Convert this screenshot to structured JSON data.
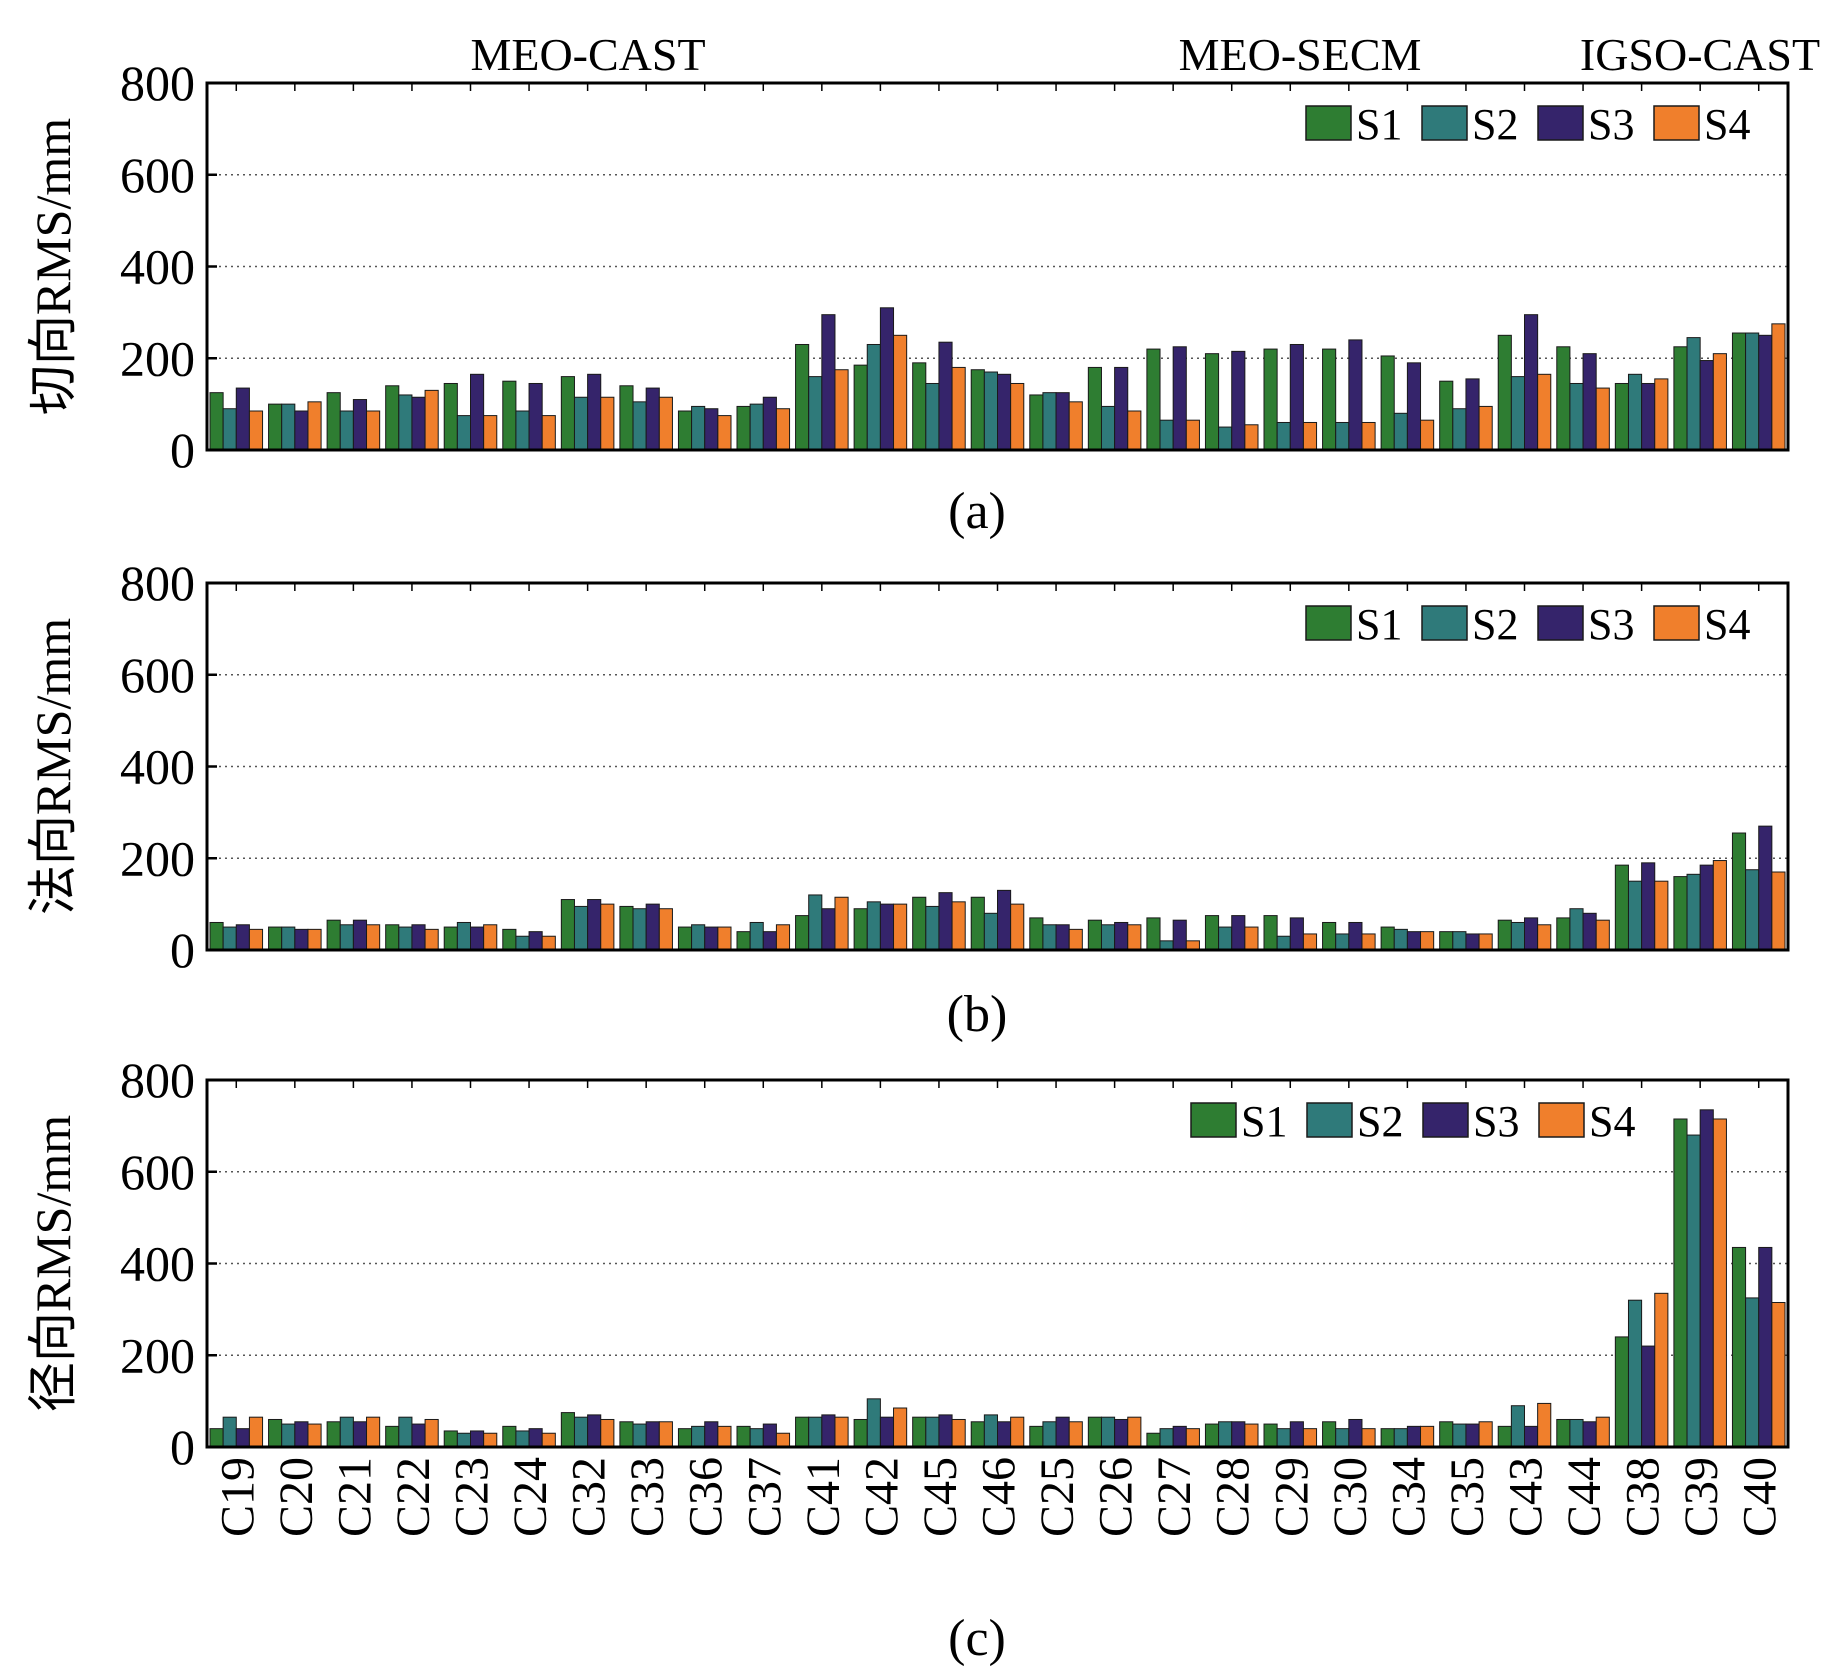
{
  "colors": {
    "S1": "#2e7d32",
    "S2": "#2f7a7a",
    "S3": "#35246b",
    "S4": "#f07f2c"
  },
  "group_labels": [
    "MEO-CAST",
    "MEO-SECM",
    "IGSO-CAST"
  ],
  "chart_data": [
    {
      "type": "bar",
      "panel_label": "(a)",
      "ylabel": "切向RMS/mm",
      "ylim": [
        0,
        800
      ],
      "yticks": [
        0,
        200,
        400,
        600,
        800
      ],
      "grid": "horizontal dotted",
      "legend_position": "top-right",
      "categories": [
        "C19",
        "C20",
        "C21",
        "C22",
        "C23",
        "C24",
        "C32",
        "C33",
        "C36",
        "C37",
        "C41",
        "C42",
        "C45",
        "C46",
        "C25",
        "C26",
        "C27",
        "C28",
        "C29",
        "C30",
        "C34",
        "C35",
        "C43",
        "C44",
        "C38",
        "C39",
        "C40"
      ],
      "series": [
        {
          "name": "S1",
          "values": [
            125,
            100,
            125,
            140,
            145,
            150,
            160,
            140,
            85,
            95,
            230,
            185,
            190,
            175,
            120,
            180,
            220,
            210,
            220,
            220,
            205,
            150,
            250,
            225,
            145,
            225,
            255
          ]
        },
        {
          "name": "S2",
          "values": [
            90,
            100,
            85,
            120,
            75,
            85,
            115,
            105,
            95,
            100,
            160,
            230,
            145,
            170,
            125,
            95,
            65,
            50,
            60,
            60,
            80,
            90,
            160,
            145,
            165,
            245,
            255
          ]
        },
        {
          "name": "S3",
          "values": [
            135,
            85,
            110,
            115,
            165,
            145,
            165,
            135,
            90,
            115,
            295,
            310,
            235,
            165,
            125,
            180,
            225,
            215,
            230,
            240,
            190,
            155,
            295,
            210,
            145,
            195,
            250
          ]
        },
        {
          "name": "S4",
          "values": [
            85,
            105,
            85,
            130,
            75,
            75,
            115,
            115,
            75,
            90,
            175,
            250,
            180,
            145,
            105,
            85,
            65,
            55,
            60,
            60,
            65,
            95,
            165,
            135,
            155,
            210,
            275
          ]
        }
      ]
    },
    {
      "type": "bar",
      "panel_label": "(b)",
      "ylabel": "法向RMS/mm",
      "ylim": [
        0,
        800
      ],
      "yticks": [
        0,
        200,
        400,
        600,
        800
      ],
      "grid": "horizontal dotted",
      "legend_position": "top-right",
      "categories": [
        "C19",
        "C20",
        "C21",
        "C22",
        "C23",
        "C24",
        "C32",
        "C33",
        "C36",
        "C37",
        "C41",
        "C42",
        "C45",
        "C46",
        "C25",
        "C26",
        "C27",
        "C28",
        "C29",
        "C30",
        "C34",
        "C35",
        "C43",
        "C44",
        "C38",
        "C39",
        "C40"
      ],
      "series": [
        {
          "name": "S1",
          "values": [
            60,
            50,
            65,
            55,
            50,
            45,
            110,
            95,
            50,
            40,
            75,
            90,
            115,
            115,
            70,
            65,
            70,
            75,
            75,
            60,
            50,
            40,
            65,
            70,
            185,
            160,
            255
          ]
        },
        {
          "name": "S2",
          "values": [
            50,
            50,
            55,
            50,
            60,
            30,
            95,
            90,
            55,
            60,
            120,
            105,
            95,
            80,
            55,
            55,
            20,
            50,
            30,
            35,
            45,
            40,
            60,
            90,
            150,
            165,
            175
          ]
        },
        {
          "name": "S3",
          "values": [
            55,
            45,
            65,
            55,
            50,
            40,
            110,
            100,
            50,
            40,
            90,
            100,
            125,
            130,
            55,
            60,
            65,
            75,
            70,
            60,
            40,
            35,
            70,
            80,
            190,
            185,
            270
          ]
        },
        {
          "name": "S4",
          "values": [
            45,
            45,
            55,
            45,
            55,
            30,
            100,
            90,
            50,
            55,
            115,
            100,
            105,
            100,
            45,
            55,
            20,
            50,
            35,
            35,
            40,
            35,
            55,
            65,
            150,
            195,
            170
          ]
        }
      ]
    },
    {
      "type": "bar",
      "panel_label": "(c)",
      "ylabel": "径向RMS/mm",
      "ylim": [
        0,
        800
      ],
      "yticks": [
        0,
        200,
        400,
        600,
        800
      ],
      "grid": "horizontal dotted",
      "legend_position": "top-right",
      "categories": [
        "C19",
        "C20",
        "C21",
        "C22",
        "C23",
        "C24",
        "C32",
        "C33",
        "C36",
        "C37",
        "C41",
        "C42",
        "C45",
        "C46",
        "C25",
        "C26",
        "C27",
        "C28",
        "C29",
        "C30",
        "C34",
        "C35",
        "C43",
        "C44",
        "C38",
        "C39",
        "C40"
      ],
      "series": [
        {
          "name": "S1",
          "values": [
            40,
            60,
            55,
            45,
            35,
            45,
            75,
            55,
            40,
            45,
            65,
            60,
            65,
            55,
            45,
            65,
            30,
            50,
            50,
            55,
            40,
            55,
            45,
            60,
            240,
            715,
            435
          ]
        },
        {
          "name": "S2",
          "values": [
            65,
            50,
            65,
            65,
            30,
            35,
            65,
            50,
            45,
            40,
            65,
            105,
            65,
            70,
            55,
            65,
            40,
            55,
            40,
            40,
            40,
            50,
            90,
            60,
            320,
            680,
            325
          ]
        },
        {
          "name": "S3",
          "values": [
            40,
            55,
            55,
            50,
            35,
            40,
            70,
            55,
            55,
            50,
            70,
            65,
            70,
            55,
            65,
            60,
            45,
            55,
            55,
            60,
            45,
            50,
            45,
            55,
            220,
            735,
            435
          ]
        },
        {
          "name": "S4",
          "values": [
            65,
            50,
            65,
            60,
            30,
            30,
            60,
            55,
            45,
            30,
            65,
            85,
            60,
            65,
            55,
            65,
            40,
            50,
            40,
            40,
            45,
            55,
            95,
            65,
            335,
            715,
            315
          ]
        }
      ]
    }
  ]
}
